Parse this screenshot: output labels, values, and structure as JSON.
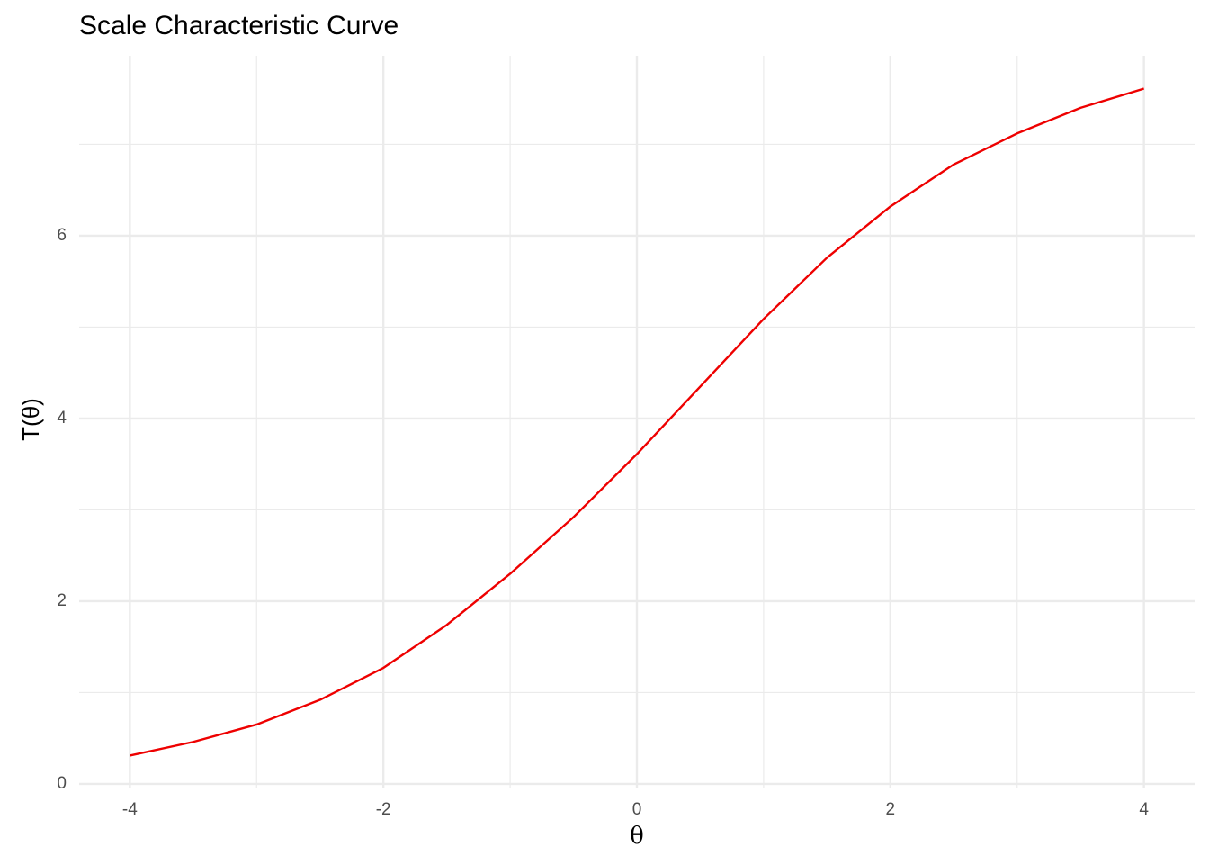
{
  "chart_data": {
    "type": "line",
    "title": "Scale Characteristic Curve",
    "x_label": "θ",
    "y_label": "T(θ)",
    "x": [
      -4,
      -3.5,
      -3,
      -2.5,
      -2,
      -1.5,
      -1,
      -0.5,
      0,
      0.5,
      1,
      1.5,
      2,
      2.5,
      3,
      3.5,
      4
    ],
    "series": [
      {
        "color": "#ee0000",
        "values": [
          0.31,
          0.46,
          0.65,
          0.92,
          1.27,
          1.74,
          2.3,
          2.92,
          3.61,
          4.35,
          5.09,
          5.76,
          6.32,
          6.78,
          7.12,
          7.4,
          7.61
        ]
      }
    ],
    "xlim": [
      -4.4,
      4.4
    ],
    "ylim": [
      -0.05,
      7.97
    ],
    "xticks": [
      -4,
      -2,
      0,
      2,
      4
    ],
    "yticks": [
      0,
      2,
      4,
      6
    ],
    "x_minor_grid": [
      -3,
      -1,
      1,
      3
    ],
    "y_minor_grid": [
      1,
      3,
      5,
      7
    ],
    "grid": true
  }
}
